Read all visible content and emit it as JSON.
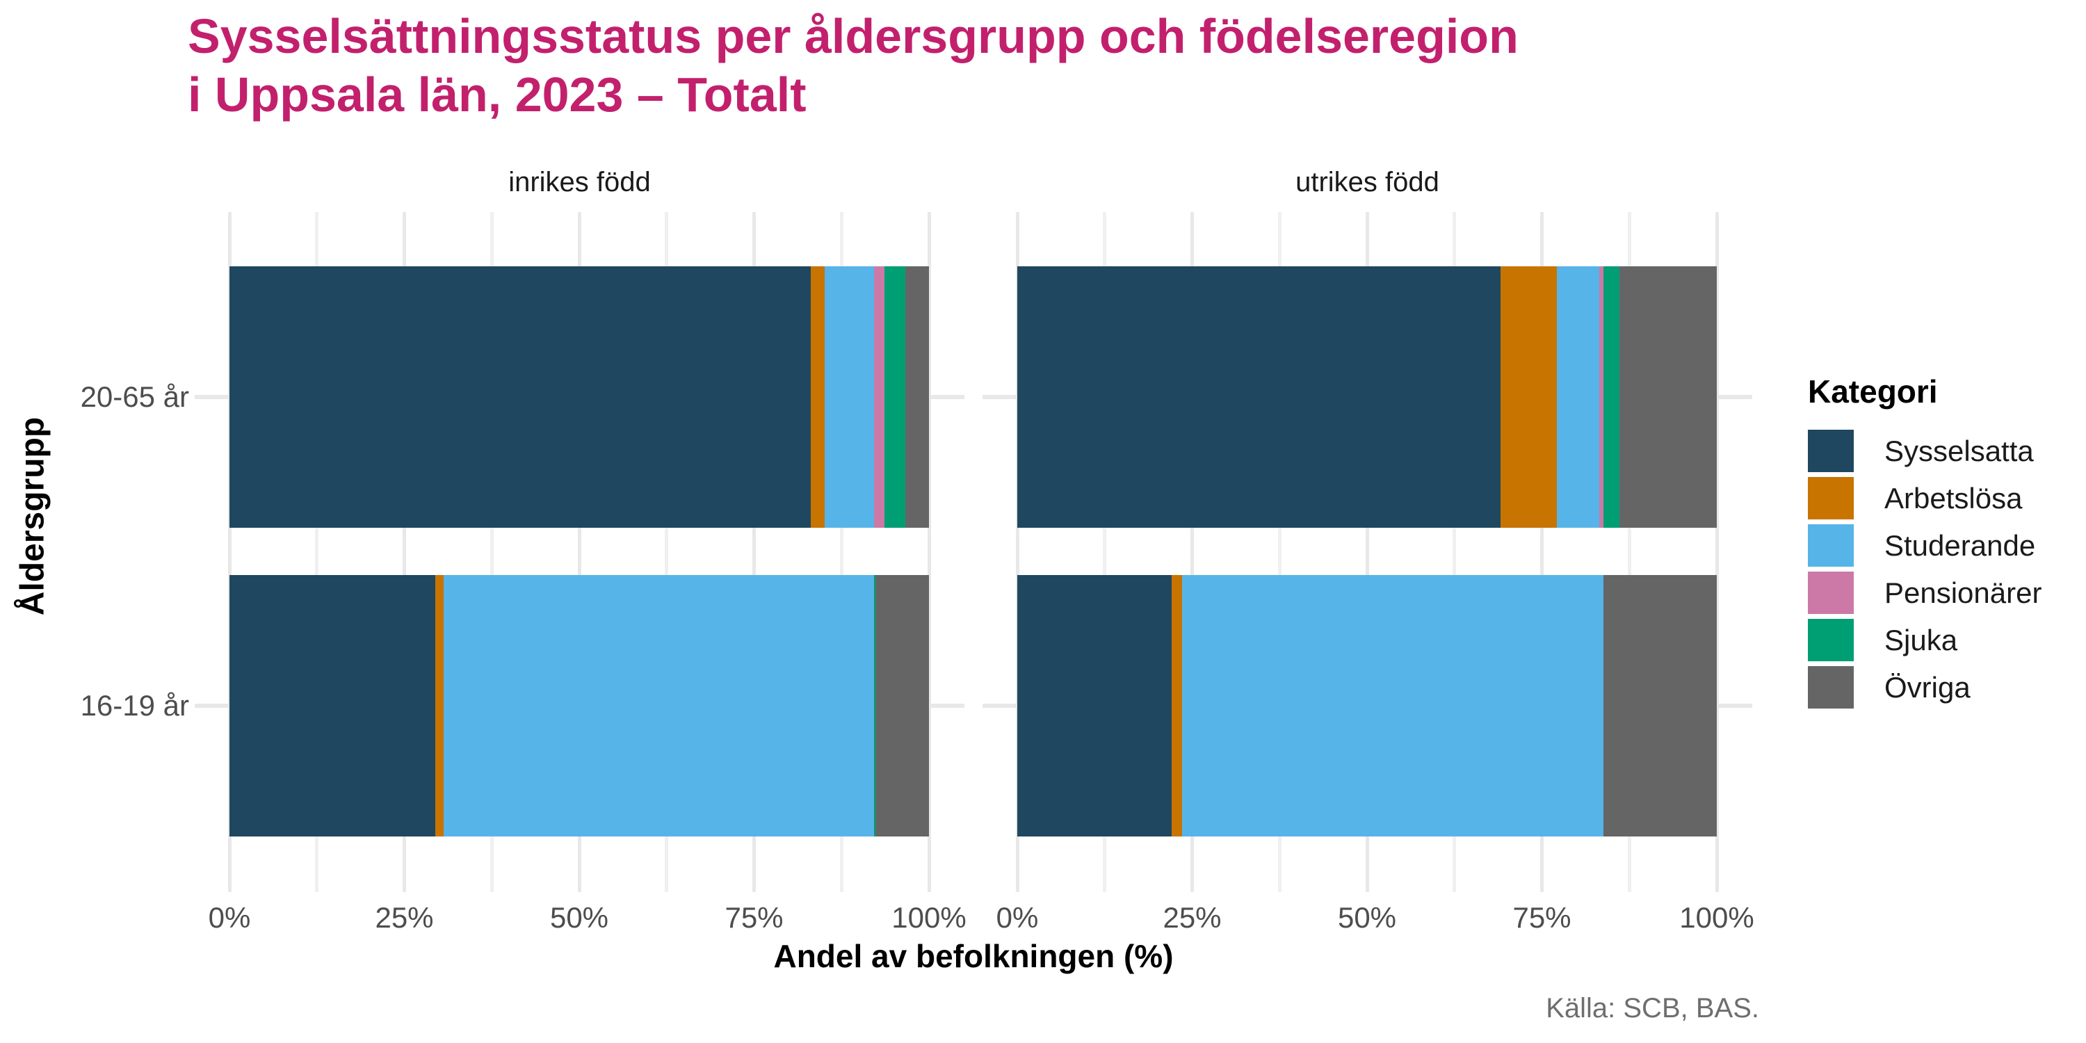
{
  "title": {
    "line1": "Sysselsättningsstatus per åldersgrupp och födelseregion",
    "line2": "i Uppsala län, 2023 – Totalt",
    "color": "#C2206D"
  },
  "axes": {
    "x_title": "Andel av befolkningen (%)",
    "y_title": "Åldersgrupp"
  },
  "legend": {
    "title": "Kategori"
  },
  "caption": "Källa: SCB, BAS.",
  "chart_data": {
    "type": "bar",
    "orientation": "horizontal",
    "stacked": true,
    "title": "Sysselsättningsstatus per åldersgrupp och födelseregion i Uppsala län, 2023 – Totalt",
    "xlabel": "Andel av befolkningen (%)",
    "ylabel": "Åldersgrupp",
    "x_axis": {
      "range": [
        0,
        100
      ],
      "tick_values": [
        0,
        25,
        50,
        75,
        100
      ],
      "tick_labels": [
        "0%",
        "25%",
        "50%",
        "75%",
        "100%"
      ],
      "minor_gridlines": [
        12.5,
        37.5,
        62.5,
        87.5
      ],
      "grid": true
    },
    "y_axis": {
      "categories": [
        "20-65 år",
        "16-19 år"
      ]
    },
    "legend_title": "Kategori",
    "legend_position": "right",
    "series": [
      {
        "name": "Sysselsatta",
        "color": "#1F4760"
      },
      {
        "name": "Arbetslösa",
        "color": "#C87400"
      },
      {
        "name": "Studerande",
        "color": "#56B4E9"
      },
      {
        "name": "Pensionärer",
        "color": "#CC79A7"
      },
      {
        "name": "Sjuka",
        "color": "#009E73"
      },
      {
        "name": "Övriga",
        "color": "#656565"
      }
    ],
    "facets": [
      {
        "label": "inrikes född",
        "bars": [
          {
            "category": "20-65 år",
            "values": [
              83.1,
              2.0,
              7.0,
              1.5,
              3.0,
              3.4
            ]
          },
          {
            "category": "16-19 år",
            "values": [
              29.4,
              1.2,
              61.5,
              0,
              0.2,
              7.7
            ]
          }
        ]
      },
      {
        "label": "utrikes född",
        "bars": [
          {
            "category": "20-65 år",
            "values": [
              69.1,
              8.0,
              6.1,
              0.6,
              2.3,
              13.9
            ]
          },
          {
            "category": "16-19 år",
            "values": [
              22.1,
              1.5,
              60.2,
              0,
              0,
              16.2
            ]
          }
        ]
      }
    ]
  }
}
